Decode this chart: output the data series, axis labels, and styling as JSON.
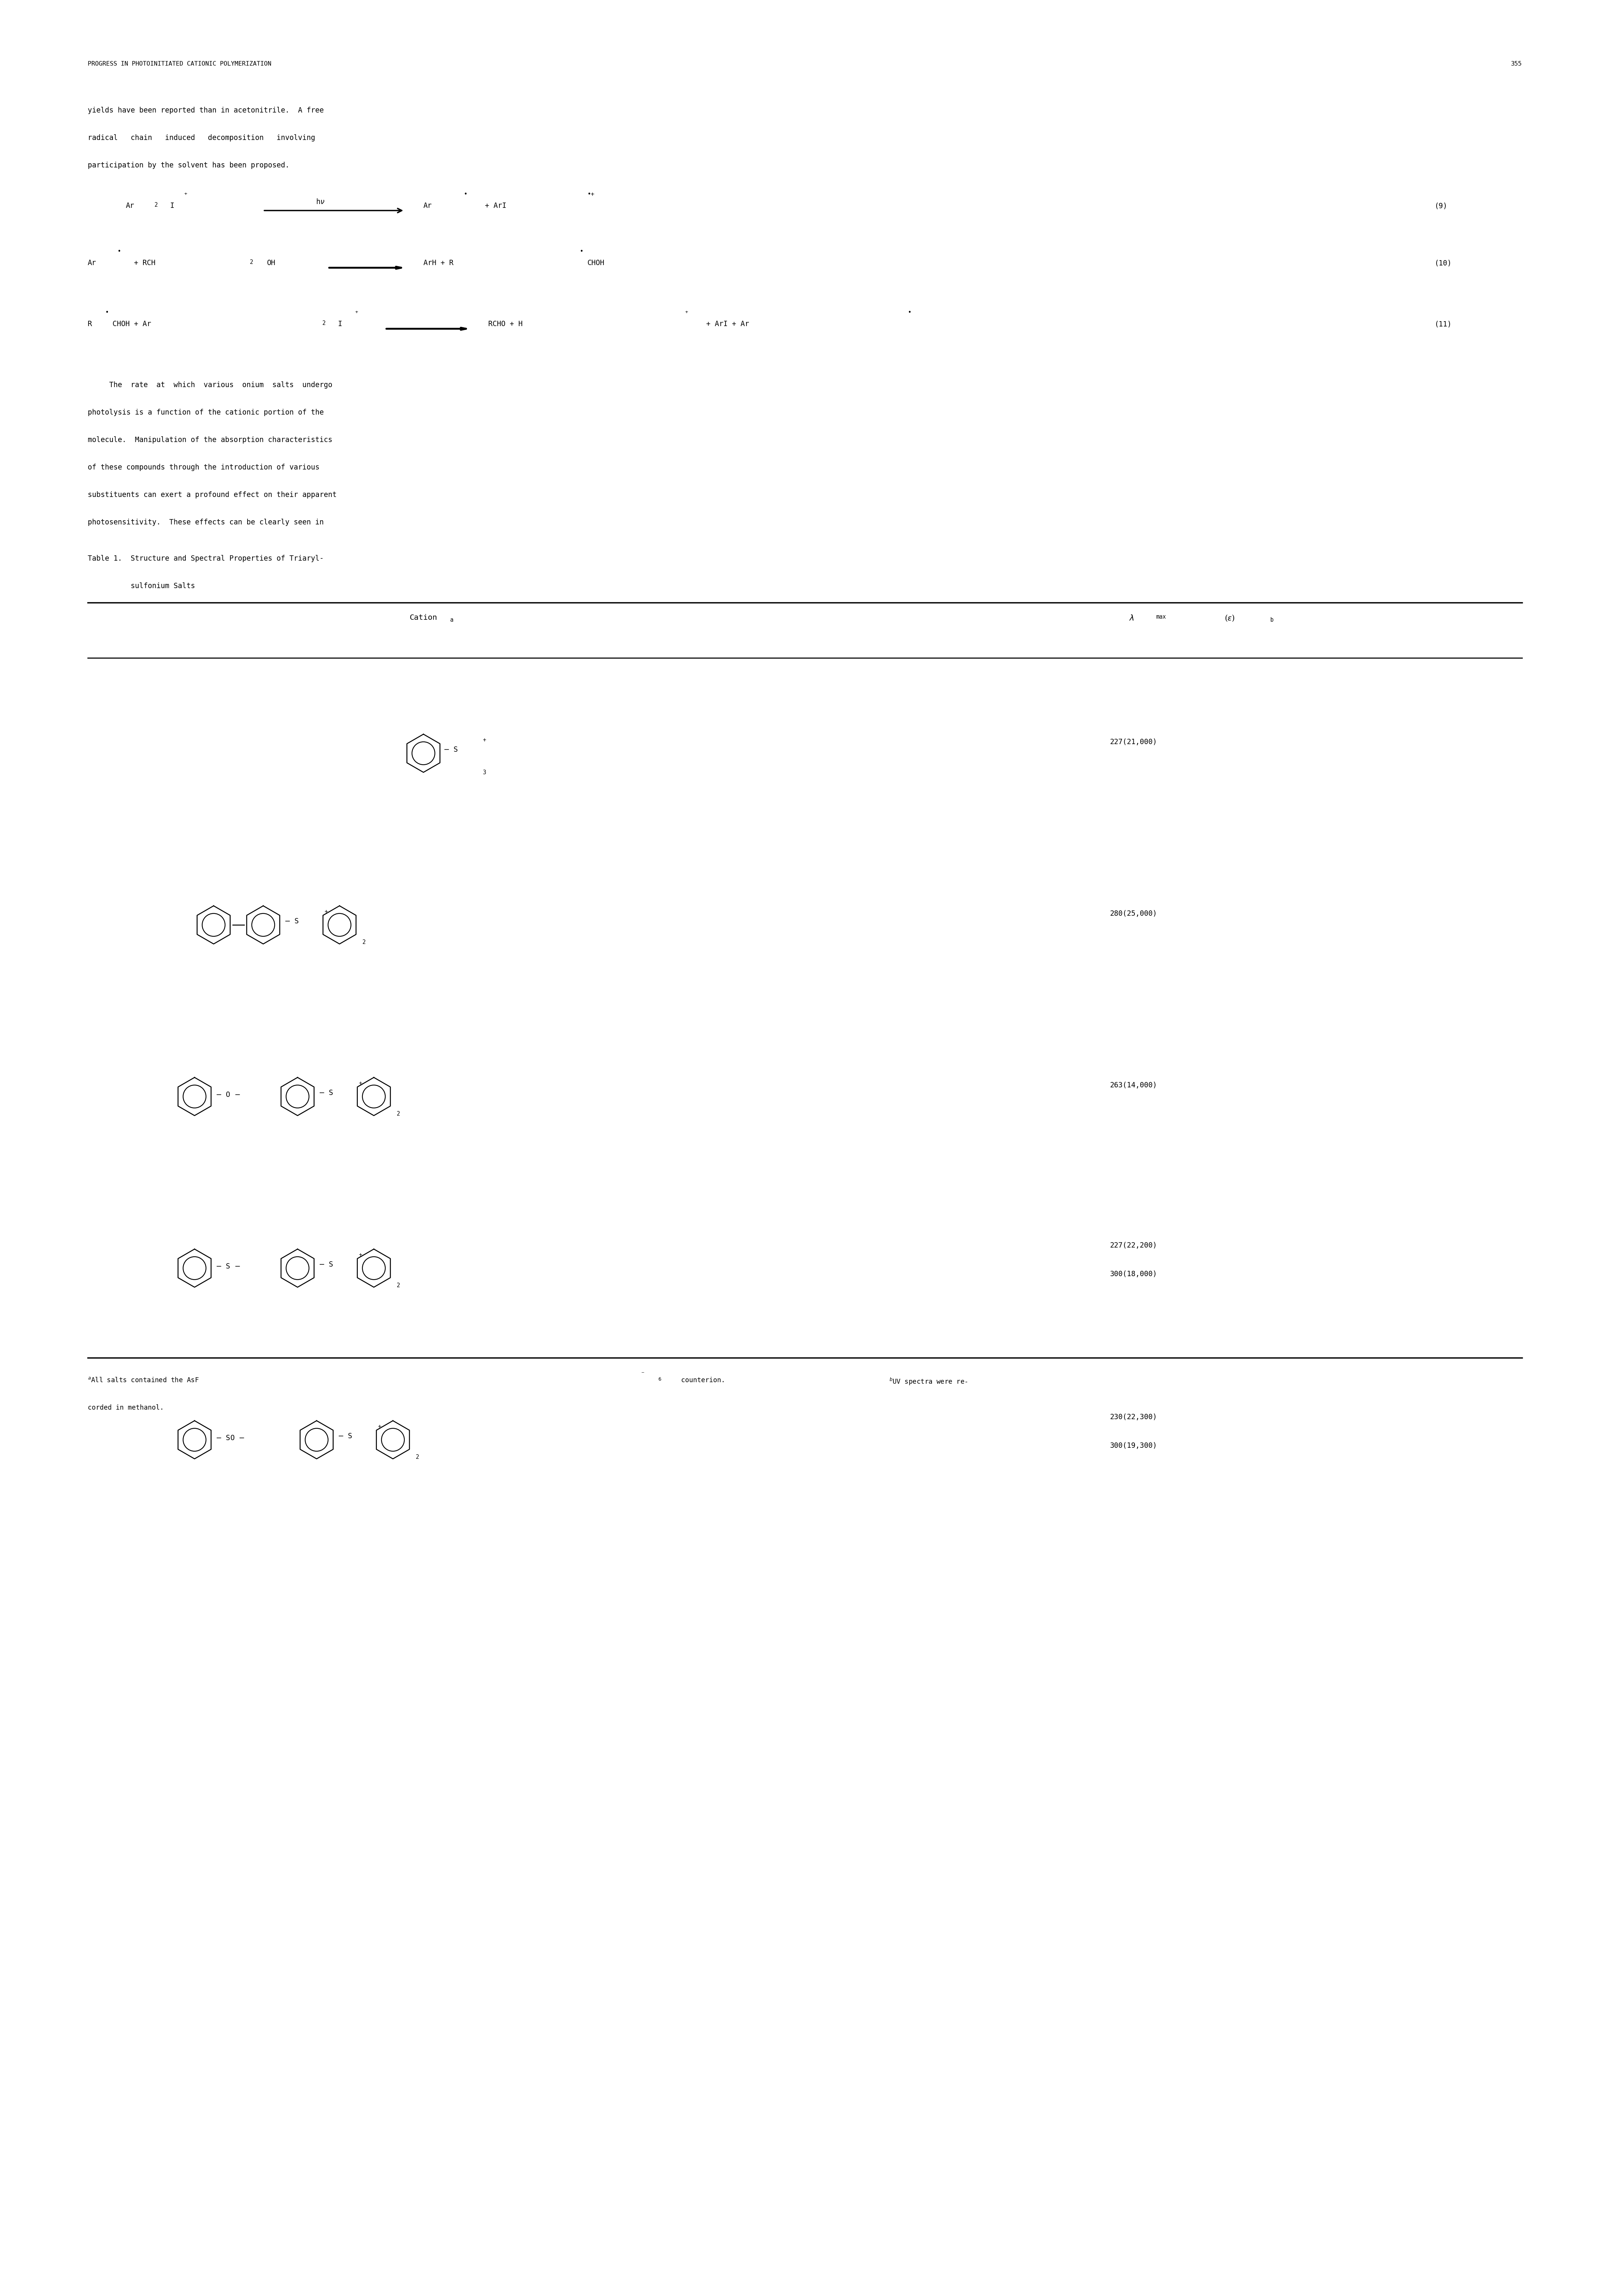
{
  "page_width": 42.11,
  "page_height": 60.0,
  "bg_color": "#ffffff",
  "text_color": "#000000",
  "font_size_header": 11.5,
  "font_size_body": 13.5,
  "font_size_table": 13.0,
  "header_text": "PROGRESS IN PHOTOINITIATED CATIONIC POLYMERIZATION",
  "page_number": "355",
  "paragraph1": "yields have been reported than in acetonitrile.  A free\nradical   chain   induced   decomposition   involving\nparticipation by the solvent has been proposed.",
  "paragraph2": "     The  rate  at  which  various  onium  salts  undergo\nphotolysis is a function of the cationic portion of the\nmolecule.  Manipulation of the absorption characteristics\nof these compounds through the introduction of various\nsubstituents can exert a profound effect on their apparent\nphotosensitivity.  These effects can be clearly seen in",
  "table_title_line1": "Table 1.  Structure and Spectral Properties of Triaryl-",
  "table_title_line2": "          sulfonium Salts",
  "col1_header": "Cation",
  "col1_super": "a",
  "col2_header": "λ",
  "col2_header2": "max",
  "col2_header3": "(ε)",
  "col2_super": "b",
  "spectral_values": [
    "227(21,000)",
    "280(25,000)",
    "263(14,000)",
    "227(22,200)\n300(18,000)",
    "230(22,300)\n300(19,300)"
  ],
  "footnote_a": "All salts contained the AsF",
  "footnote_a2": "6",
  "footnote_a3": " counterion.",
  "footnote_b": "UV spectra were re-\ncorded in methanol.",
  "line_color": "#000000"
}
